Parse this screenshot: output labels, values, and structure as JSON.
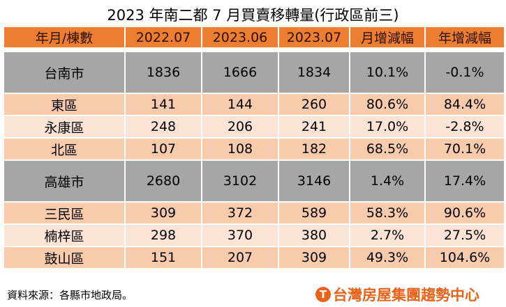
{
  "title": "2023 年南二都 7 月買賣移轉量(行政區前三)",
  "headers": [
    "年月/棟數",
    "2022.07",
    "2023.06",
    "2023.07",
    "月增減幅",
    "年增減幅"
  ],
  "rows": [
    {
      "type": "city",
      "cells": [
        "台南市",
        "1836",
        "1666",
        "1834",
        "10.1%",
        "-0.1%"
      ]
    },
    {
      "type": "d1",
      "cells": [
        "東區",
        "141",
        "144",
        "260",
        "80.6%",
        "84.4%"
      ]
    },
    {
      "type": "d2",
      "cells": [
        "永康區",
        "248",
        "206",
        "241",
        "17.0%",
        "-2.8%"
      ]
    },
    {
      "type": "d1",
      "cells": [
        "北區",
        "107",
        "108",
        "182",
        "68.5%",
        "70.1%"
      ]
    },
    {
      "type": "city",
      "cells": [
        "高雄市",
        "2680",
        "3102",
        "3146",
        "1.4%",
        "17.4%"
      ]
    },
    {
      "type": "d1",
      "cells": [
        "三民區",
        "309",
        "372",
        "589",
        "58.3%",
        "90.6%"
      ]
    },
    {
      "type": "d2",
      "cells": [
        "楠梓區",
        "298",
        "370",
        "380",
        "2.7%",
        "27.5%"
      ]
    },
    {
      "type": "d1",
      "cells": [
        "鼓山區",
        "151",
        "207",
        "309",
        "49.3%",
        "104.6%"
      ]
    }
  ],
  "source": "資料來源：各縣市地政局。",
  "logo": {
    "icon": "T",
    "text": "台灣房屋集團趨勢中心"
  },
  "colors": {
    "header": "#ED7D31",
    "city": "#A6A6A6",
    "district_dark": "#F8CBAD",
    "district_light": "#FBE4D5",
    "logo": "#E8621A"
  }
}
